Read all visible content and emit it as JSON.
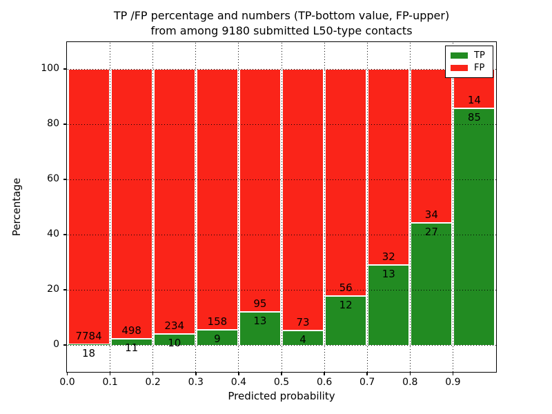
{
  "figure": {
    "title_line1": "TP /FP percentage and numbers (TP-bottom value, FP-upper)",
    "title_line2": "from among 9180 submitted L50-type contacts",
    "xlabel": "Predicted probability",
    "ylabel": "Percentage"
  },
  "legend": {
    "position": "upper-right",
    "items": [
      {
        "label": "TP",
        "color": "#228b22"
      },
      {
        "label": "FP",
        "color": "#fa2419"
      }
    ]
  },
  "chart_data": {
    "type": "bar",
    "stacked": true,
    "title": "TP /FP percentage and numbers (TP-bottom value, FP-upper) from among 9180 submitted L50-type contacts",
    "xlabel": "Predicted probability",
    "ylabel": "Percentage",
    "total_submitted": 9180,
    "categories": [
      "0.0-0.1",
      "0.1-0.2",
      "0.2-0.3",
      "0.3-0.4",
      "0.4-0.5",
      "0.5-0.6",
      "0.6-0.7",
      "0.7-0.8",
      "0.8-0.9",
      "0.9-1.0"
    ],
    "bin_width": 0.1,
    "series": [
      {
        "name": "TP",
        "color": "#228b22",
        "counts": [
          18,
          11,
          10,
          9,
          13,
          4,
          12,
          13,
          27,
          85
        ],
        "pct": [
          0.23,
          2.16,
          4.1,
          5.39,
          12.04,
          5.19,
          17.65,
          28.89,
          44.26,
          85.86
        ]
      },
      {
        "name": "FP",
        "color": "#fa2419",
        "counts": [
          7784,
          498,
          234,
          158,
          95,
          73,
          56,
          32,
          34,
          14
        ],
        "pct": [
          99.77,
          97.84,
          95.9,
          94.61,
          87.96,
          94.81,
          82.35,
          71.11,
          55.74,
          14.14
        ]
      }
    ],
    "annotation_rule": "FP count above TP/FP boundary, TP count below boundary",
    "xticks": [
      "0.0",
      "0.1",
      "0.2",
      "0.3",
      "0.4",
      "0.5",
      "0.6",
      "0.7",
      "0.8",
      "0.9"
    ],
    "yticks": [
      0,
      20,
      40,
      60,
      80,
      100
    ],
    "xlim": [
      0,
      1
    ],
    "ylim": [
      -10,
      110
    ],
    "grid": "dotted",
    "bar_edge_color": "#ffffff",
    "legend_position": "upper right"
  }
}
